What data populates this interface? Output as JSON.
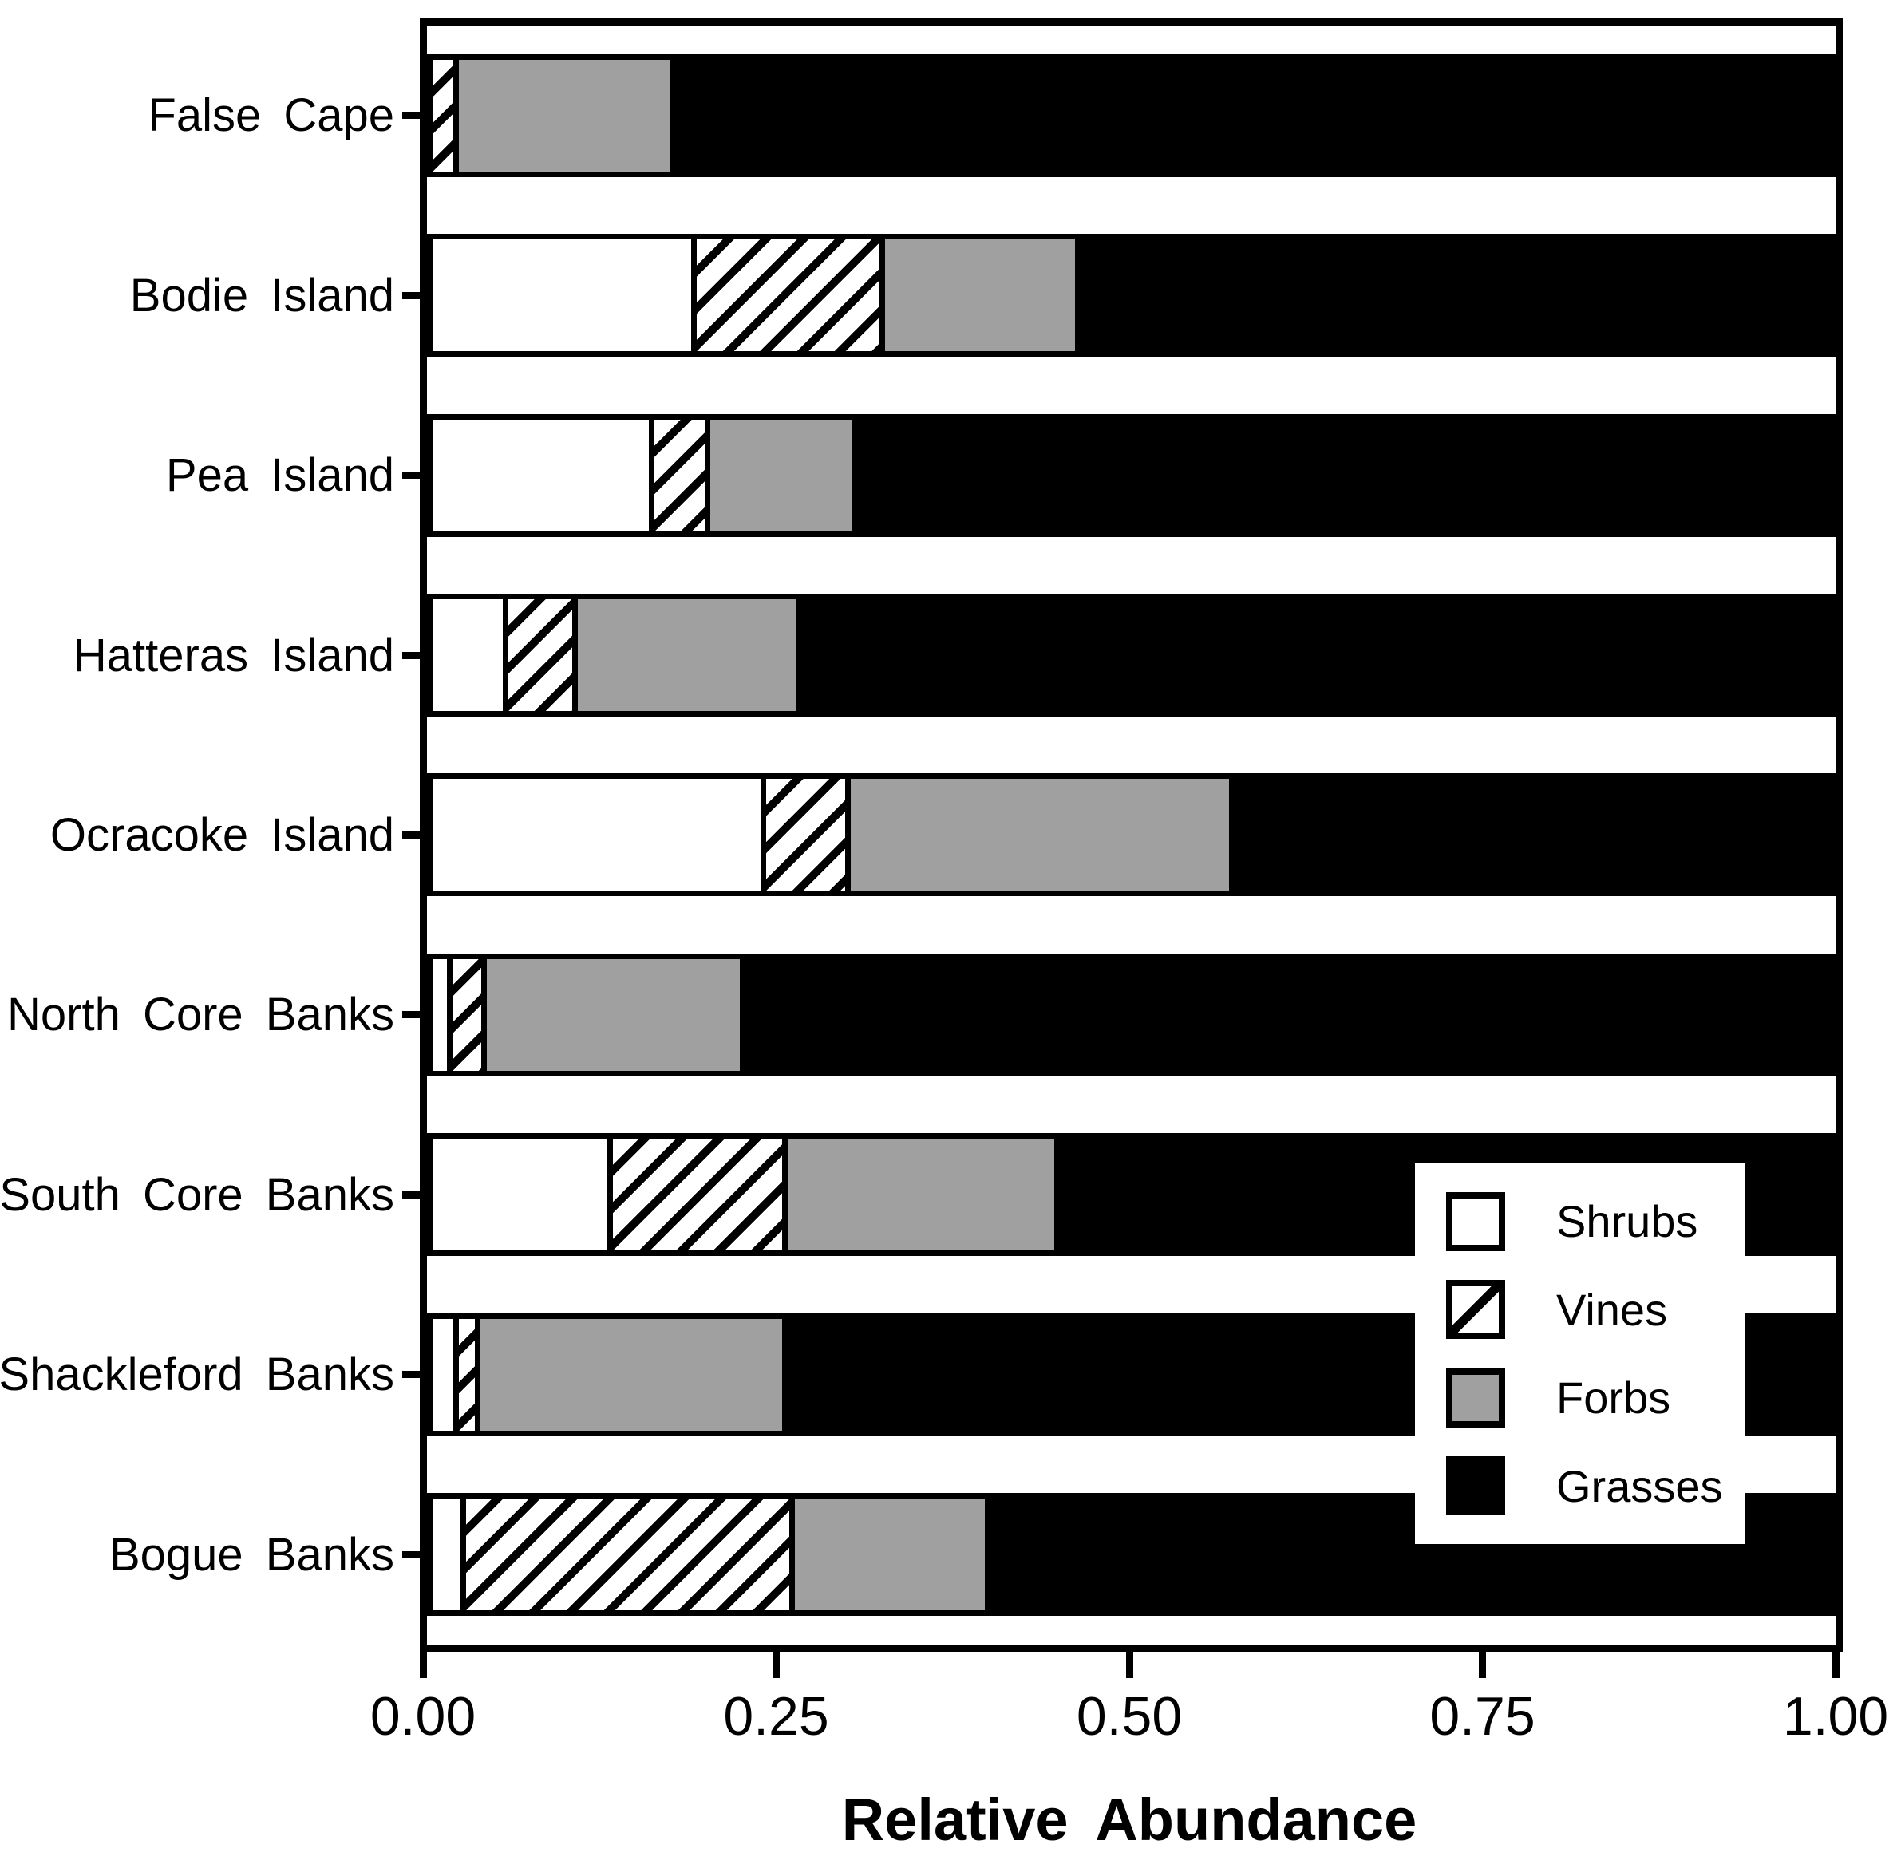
{
  "chart_data": {
    "type": "bar",
    "orientation": "horizontal",
    "stacked": true,
    "title": "",
    "xlabel": "Relative Abundance",
    "ylabel": "",
    "xlim": [
      0.0,
      1.0
    ],
    "grid": false,
    "x_ticks": [
      {
        "value": 0.0,
        "label": "0.00"
      },
      {
        "value": 0.25,
        "label": "0.25"
      },
      {
        "value": 0.5,
        "label": "0.50"
      },
      {
        "value": 0.75,
        "label": "0.75"
      },
      {
        "value": 1.0,
        "label": "1.00"
      }
    ],
    "categories": [
      "False Cape",
      "Bodie Island",
      "Pea Island",
      "Hatteras Island",
      "Ocracoke Island",
      "North Core Banks",
      "South Core Banks",
      "Shackleford Banks",
      "Bogue Banks"
    ],
    "series": [
      {
        "name": "Shrubs",
        "style": "white",
        "values": [
          0.0,
          0.185,
          0.155,
          0.05,
          0.235,
          0.01,
          0.125,
          0.015,
          0.02
        ]
      },
      {
        "name": "Vines",
        "style": "hatch",
        "values": [
          0.015,
          0.135,
          0.04,
          0.05,
          0.06,
          0.025,
          0.125,
          0.015,
          0.235
        ]
      },
      {
        "name": "Forbs",
        "style": "gray",
        "values": [
          0.155,
          0.14,
          0.105,
          0.16,
          0.275,
          0.185,
          0.195,
          0.22,
          0.14
        ]
      },
      {
        "name": "Grasses",
        "style": "black",
        "values": [
          0.83,
          0.54,
          0.7,
          0.74,
          0.43,
          0.78,
          0.555,
          0.75,
          0.605
        ]
      }
    ],
    "legend": {
      "position": "lower right",
      "entries": [
        {
          "label": "Shrubs",
          "style": "white"
        },
        {
          "label": "Vines",
          "style": "hatch"
        },
        {
          "label": "Forbs",
          "style": "gray"
        },
        {
          "label": "Grasses",
          "style": "black"
        }
      ]
    },
    "colors": {
      "forbs_gray": "#a0a0a0",
      "grasses_black": "#000000",
      "shrubs_white": "#ffffff",
      "axis": "#000000",
      "background": "#ffffff"
    }
  }
}
